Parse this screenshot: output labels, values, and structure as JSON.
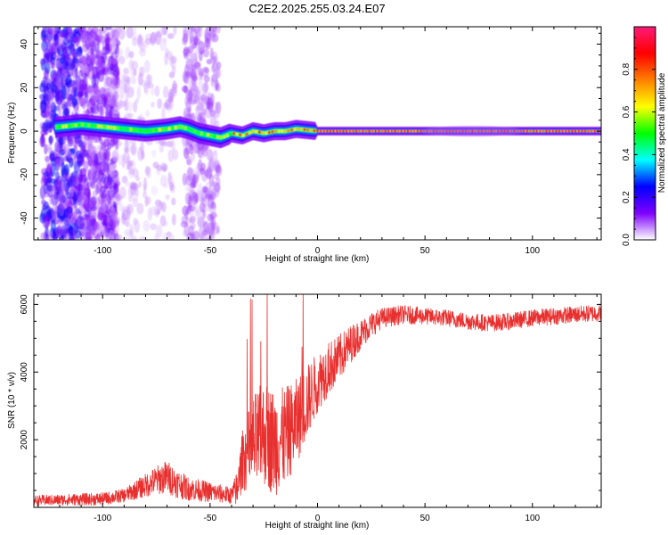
{
  "title": "C2E2.2025.255.03.24.E07",
  "chart_data": [
    {
      "type": "heatmap",
      "name": "spectrogram",
      "xlabel": "Height of straight line (km)",
      "ylabel": "Frequency (Hz)",
      "xlim": [
        -132,
        132
      ],
      "ylim": [
        -50,
        48
      ],
      "xticks": [
        -100,
        -50,
        0,
        50,
        100
      ],
      "yticks": [
        -40,
        -20,
        0,
        20,
        40
      ],
      "xtick_labels": [
        "-100",
        "-50",
        "0",
        "50",
        "100"
      ],
      "ytick_labels": [
        "-40",
        "-20",
        "0",
        "20",
        "40"
      ],
      "ridge": {
        "x": [
          -132,
          -120,
          -110,
          -100,
          -90,
          -80,
          -70,
          -64,
          -60,
          -55,
          -50,
          -45,
          -40,
          -35,
          -30,
          -25,
          -20,
          -15,
          -10,
          0,
          50,
          90,
          100,
          132
        ],
        "y": [
          1,
          2,
          3,
          2,
          1,
          0,
          1,
          2,
          1,
          -1,
          -2,
          -3,
          -1,
          -2,
          0,
          -1,
          0,
          0,
          1,
          0,
          0,
          0,
          0,
          0
        ]
      },
      "noise_region_km": [
        -132,
        -97
      ],
      "noise_band_km": [
        -62,
        -46
      ]
    },
    {
      "type": "colorbar",
      "name": "colorbar",
      "label": "Normalized spectral amplitude",
      "range": [
        0,
        1
      ],
      "ticks": [
        0.0,
        0.2,
        0.4,
        0.6,
        0.8
      ],
      "tick_labels": [
        "0.0",
        "0.2",
        "0.4",
        "0.6",
        "0.8"
      ],
      "colors": [
        "#ffffff",
        "#7f00ff",
        "#0000ff",
        "#00ffff",
        "#00ff00",
        "#ffff00",
        "#ff7f00",
        "#ff0000",
        "#ff1a7a"
      ]
    },
    {
      "type": "line",
      "name": "snr",
      "xlabel": "Height of straight line (km)",
      "ylabel": "SNR (10 * v/v)",
      "xlim": [
        -132,
        132
      ],
      "ylim": [
        0,
        6300
      ],
      "xticks": [
        -100,
        -50,
        0,
        50,
        100
      ],
      "yticks": [
        2000,
        4000,
        6000
      ],
      "xtick_labels": [
        "-100",
        "-50",
        "0",
        "50",
        "100"
      ],
      "ytick_labels": [
        "2000",
        "4000",
        "6000"
      ],
      "color": "#e8302f",
      "envelope": {
        "x": [
          -132,
          -100,
          -90,
          -85,
          -80,
          -75,
          -70,
          -65,
          -60,
          -55,
          -50,
          -45,
          -40,
          -37,
          -35,
          -30,
          -25,
          -20,
          -15,
          -10,
          -5,
          0,
          5,
          10,
          15,
          20,
          25,
          30,
          40,
          50,
          60,
          70,
          80,
          90,
          100,
          110,
          120,
          132
        ],
        "y": [
          200,
          250,
          350,
          500,
          650,
          800,
          900,
          700,
          550,
          500,
          450,
          400,
          350,
          600,
          1400,
          1800,
          2200,
          1900,
          2100,
          2500,
          3100,
          3700,
          4100,
          4400,
          4800,
          5100,
          5400,
          5600,
          5700,
          5650,
          5600,
          5500,
          5450,
          5500,
          5600,
          5650,
          5700,
          5750
        ]
      },
      "noise_amplitude": {
        "x": [
          -132,
          -90,
          -80,
          -70,
          -60,
          -40,
          -37,
          -30,
          -20,
          -10,
          0,
          10,
          20,
          30,
          50,
          100,
          132
        ],
        "y": [
          150,
          200,
          350,
          500,
          350,
          250,
          600,
          1500,
          1600,
          1300,
          900,
          700,
          450,
          300,
          250,
          250,
          250
        ]
      }
    }
  ]
}
